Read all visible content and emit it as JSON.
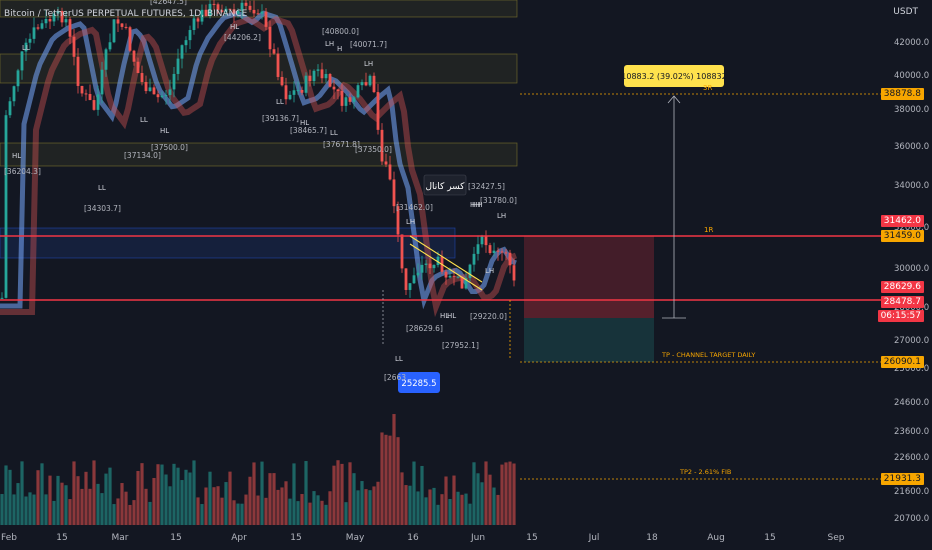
{
  "header": {
    "title": "Bitcoin / TetherUS PERPETUAL FUTURES, 1D, BINANCE",
    "currency": "USDT"
  },
  "colors": {
    "background": "#131722",
    "up": "#26a69a",
    "down": "#ef5350",
    "red_line": "#f23645",
    "orange": "#f7a600",
    "tp_label": "#f7a600",
    "current_price": "#f23645",
    "blue_label": "#2962ff",
    "yellow_label": "#ffe24d"
  },
  "chart_data": {
    "type": "candlestick",
    "y_axis": {
      "ticks": [
        "42000.0",
        "40000.0",
        "38000.0",
        "36000.0",
        "34000.0",
        "32000.0",
        "30000.0",
        "28000.0",
        "27000.0",
        "25000.0",
        "24600.0",
        "23600.0",
        "22600.0",
        "21600.0",
        "20700.0"
      ]
    },
    "x_axis": {
      "ticks": [
        "Feb",
        "15",
        "Mar",
        "15",
        "Apr",
        "15",
        "May",
        "16",
        "Jun",
        "15",
        "Jul",
        "18",
        "Aug",
        "15",
        "Sep"
      ]
    },
    "price_labels": [
      {
        "value": "38878.8",
        "kind": "orange"
      },
      {
        "value": "31462.0",
        "kind": "red"
      },
      {
        "value": "31459.0",
        "kind": "orange"
      },
      {
        "value": "28629.6",
        "kind": "red"
      },
      {
        "value": "28478.7",
        "kind": "red"
      },
      {
        "value": "06:15:57",
        "kind": "red"
      },
      {
        "value": "26090.1",
        "kind": "orange"
      },
      {
        "value": "21931.3",
        "kind": "orange"
      }
    ],
    "annotations": {
      "measure": "10883.2 (39.02%) 108832",
      "low_badge": "25285.5",
      "arabic_note": "كسر كانال",
      "tp1": "TP - CHANNEL TARGET DAILY",
      "tp2": "TP2 - 2.61% FIB",
      "r1": "1R",
      "sr": "3R"
    },
    "level_labels": [
      {
        "text": "[42647.5]"
      },
      {
        "text": "[44206.2]"
      },
      {
        "text": "[40800.0]"
      },
      {
        "text": "[40071.7]"
      },
      {
        "text": "[39136.7]"
      },
      {
        "text": "[38465.7]"
      },
      {
        "text": "[37500.0]"
      },
      {
        "text": "[37134.0]"
      },
      {
        "text": "[37671.8]"
      },
      {
        "text": "[37350.0]"
      },
      {
        "text": "[36204.3]"
      },
      {
        "text": "[34303.7]"
      },
      {
        "text": "[31462.0]"
      },
      {
        "text": "[31780.0]"
      },
      {
        "text": "[32427.5]"
      },
      {
        "text": "[28629.6]"
      },
      {
        "text": "[27952.1]"
      },
      {
        "text": "[29220.0]"
      },
      {
        "text": "[2663"
      }
    ],
    "swing_labels": [
      "HL",
      "HH",
      "LH",
      "LL",
      "HL",
      "LL",
      "HL",
      "LL",
      "LL",
      "LH",
      "H",
      "LH",
      "LL",
      "HH",
      "LH",
      "LH",
      "HL",
      "LL",
      "HL",
      "HL"
    ]
  }
}
